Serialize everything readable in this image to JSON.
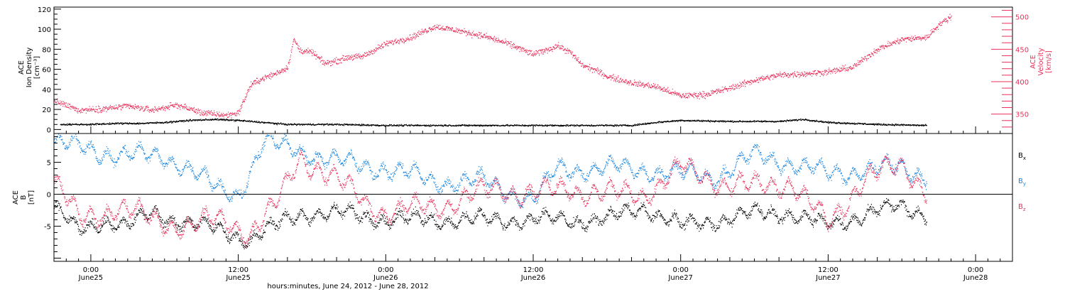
{
  "xlabel": "hours:minutes, June 24, 2012 - June 28, 2012",
  "x_ticks": [
    {
      "time": "2012-06-25T00:00",
      "hm": "0:00",
      "day": "June25"
    },
    {
      "time": "2012-06-25T12:00",
      "hm": "12:00",
      "day": "June25"
    },
    {
      "time": "2012-06-26T00:00",
      "hm": "0:00",
      "day": "June26"
    },
    {
      "time": "2012-06-26T12:00",
      "hm": "12:00",
      "day": "June26"
    },
    {
      "time": "2012-06-27T00:00",
      "hm": "0:00",
      "day": "June27"
    },
    {
      "time": "2012-06-27T12:00",
      "hm": "12:00",
      "day": "June27"
    },
    {
      "time": "2012-06-28T00:00",
      "hm": "0:00",
      "day": "June28"
    }
  ],
  "colors": {
    "density": "#000000",
    "velocity": "#e8305a",
    "bx": "#000000",
    "by": "#1a86e0",
    "bz": "#e8305a"
  },
  "chart_data": [
    {
      "type": "scatter",
      "panel": "top",
      "xlim": [
        "2012-06-24T21:00",
        "2012-06-28T03:00"
      ],
      "left_axis": {
        "label_lines": [
          "ACE",
          "Ion Density",
          "[cm⁻³]"
        ],
        "ylim": [
          -4,
          122
        ],
        "ticks": [
          0,
          20,
          40,
          60,
          80,
          100,
          120
        ]
      },
      "right_axis": {
        "label_lines": [
          "ACE",
          "Velocity",
          "[km/s]"
        ],
        "ylim": [
          320,
          515
        ],
        "ticks": [
          350,
          400,
          450,
          500
        ]
      },
      "series": [
        {
          "key": "density",
          "axis": "left",
          "color": "#000000",
          "points": [
            [
              "2012-06-24T21:30",
              5
            ],
            [
              "2012-06-25T00:00",
              5
            ],
            [
              "2012-06-25T02:00",
              6
            ],
            [
              "2012-06-25T04:00",
              6
            ],
            [
              "2012-06-25T06:00",
              7
            ],
            [
              "2012-06-25T08:00",
              9
            ],
            [
              "2012-06-25T10:00",
              10
            ],
            [
              "2012-06-25T12:00",
              9
            ],
            [
              "2012-06-25T14:00",
              7
            ],
            [
              "2012-06-25T16:00",
              5
            ],
            [
              "2012-06-25T18:00",
              5
            ],
            [
              "2012-06-25T20:00",
              5
            ],
            [
              "2012-06-26T00:00",
              4
            ],
            [
              "2012-06-26T04:00",
              4
            ],
            [
              "2012-06-26T08:00",
              4
            ],
            [
              "2012-06-26T12:00",
              4
            ],
            [
              "2012-06-26T16:00",
              4
            ],
            [
              "2012-06-26T20:00",
              4
            ],
            [
              "2012-06-26T22:00",
              7
            ],
            [
              "2012-06-27T00:00",
              9
            ],
            [
              "2012-06-27T04:00",
              8
            ],
            [
              "2012-06-27T08:00",
              8
            ],
            [
              "2012-06-27T10:00",
              10
            ],
            [
              "2012-06-27T12:00",
              7
            ],
            [
              "2012-06-27T16:00",
              5
            ],
            [
              "2012-06-27T20:00",
              4
            ]
          ]
        },
        {
          "key": "velocity",
          "axis": "right",
          "color": "#e8305a",
          "points": [
            [
              "2012-06-24T21:00",
              370
            ],
            [
              "2012-06-24T23:00",
              356
            ],
            [
              "2012-06-25T01:00",
              358
            ],
            [
              "2012-06-25T03:00",
              362
            ],
            [
              "2012-06-25T05:00",
              356
            ],
            [
              "2012-06-25T07:00",
              364
            ],
            [
              "2012-06-25T09:00",
              352
            ],
            [
              "2012-06-25T11:00",
              348
            ],
            [
              "2012-06-25T12:00",
              352
            ],
            [
              "2012-06-25T13:00",
              395
            ],
            [
              "2012-06-25T14:00",
              405
            ],
            [
              "2012-06-25T15:00",
              412
            ],
            [
              "2012-06-25T16:00",
              422
            ],
            [
              "2012-06-25T16:30",
              465
            ],
            [
              "2012-06-25T17:00",
              448
            ],
            [
              "2012-06-25T18:00",
              445
            ],
            [
              "2012-06-25T19:00",
              428
            ],
            [
              "2012-06-25T20:00",
              432
            ],
            [
              "2012-06-25T21:00",
              438
            ],
            [
              "2012-06-25T22:00",
              438
            ],
            [
              "2012-06-26T00:00",
              458
            ],
            [
              "2012-06-26T02:00",
              468
            ],
            [
              "2012-06-26T04:00",
              485
            ],
            [
              "2012-06-26T06:00",
              478
            ],
            [
              "2012-06-26T08:00",
              470
            ],
            [
              "2012-06-26T10:00",
              458
            ],
            [
              "2012-06-26T12:00",
              442
            ],
            [
              "2012-06-26T14:00",
              455
            ],
            [
              "2012-06-26T15:00",
              445
            ],
            [
              "2012-06-26T16:00",
              425
            ],
            [
              "2012-06-26T17:00",
              418
            ],
            [
              "2012-06-26T18:00",
              408
            ],
            [
              "2012-06-26T20:00",
              398
            ],
            [
              "2012-06-26T22:00",
              392
            ],
            [
              "2012-06-27T00:00",
              378
            ],
            [
              "2012-06-27T02:00",
              380
            ],
            [
              "2012-06-27T04:00",
              390
            ],
            [
              "2012-06-27T06:00",
              402
            ],
            [
              "2012-06-27T08:00",
              410
            ],
            [
              "2012-06-27T10:00",
              412
            ],
            [
              "2012-06-27T12:00",
              415
            ],
            [
              "2012-06-27T14:00",
              422
            ],
            [
              "2012-06-27T16:00",
              450
            ],
            [
              "2012-06-27T18:00",
              465
            ],
            [
              "2012-06-27T20:00",
              468
            ],
            [
              "2012-06-27T21:00",
              488
            ],
            [
              "2012-06-27T22:00",
              500
            ]
          ]
        }
      ]
    },
    {
      "type": "scatter",
      "panel": "bottom",
      "xlim": [
        "2012-06-24T21:00",
        "2012-06-28T03:00"
      ],
      "left_axis": {
        "label_lines": [
          "ACE",
          "B",
          "[nT]"
        ],
        "ylim": [
          -10.5,
          9.5
        ],
        "ticks": [
          -5,
          0,
          5
        ]
      },
      "legend_position": "right",
      "series": [
        {
          "key": "bx",
          "label": "B",
          "sub": "x",
          "color": "#000000",
          "points": [
            [
              "2012-06-24T21:00",
              -2
            ],
            [
              "2012-06-24T23:00",
              -6
            ],
            [
              "2012-06-25T01:00",
              -4
            ],
            [
              "2012-06-25T03:00",
              -5
            ],
            [
              "2012-06-25T05:00",
              -3
            ],
            [
              "2012-06-25T07:00",
              -4
            ],
            [
              "2012-06-25T09:00",
              -5
            ],
            [
              "2012-06-25T11:00",
              -6
            ],
            [
              "2012-06-25T13:00",
              -7
            ],
            [
              "2012-06-25T15:00",
              -5
            ],
            [
              "2012-06-25T17:00",
              -3
            ],
            [
              "2012-06-25T19:00",
              -3
            ],
            [
              "2012-06-25T21:00",
              -3
            ],
            [
              "2012-06-26T00:00",
              -4
            ],
            [
              "2012-06-26T03:00",
              -4
            ],
            [
              "2012-06-26T06:00",
              -4
            ],
            [
              "2012-06-26T09:00",
              -4
            ],
            [
              "2012-06-26T12:00",
              -4
            ],
            [
              "2012-06-26T15:00",
              -4
            ],
            [
              "2012-06-26T18:00",
              -4
            ],
            [
              "2012-06-26T21:00",
              -2
            ],
            [
              "2012-06-27T00:00",
              -5
            ],
            [
              "2012-06-27T03:00",
              -4
            ],
            [
              "2012-06-27T06:00",
              -3
            ],
            [
              "2012-06-27T09:00",
              -3
            ],
            [
              "2012-06-27T12:00",
              -5
            ],
            [
              "2012-06-27T15:00",
              -3
            ],
            [
              "2012-06-27T18:00",
              -2
            ],
            [
              "2012-06-27T20:00",
              -3
            ]
          ]
        },
        {
          "key": "by",
          "label": "B",
          "sub": "y",
          "color": "#1a86e0",
          "points": [
            [
              "2012-06-24T21:00",
              8
            ],
            [
              "2012-06-25T00:00",
              7
            ],
            [
              "2012-06-25T03:00",
              6
            ],
            [
              "2012-06-25T06:00",
              6
            ],
            [
              "2012-06-25T08:00",
              4
            ],
            [
              "2012-06-25T10:00",
              1
            ],
            [
              "2012-06-25T12:00",
              0
            ],
            [
              "2012-06-25T14:00",
              8
            ],
            [
              "2012-06-25T17:00",
              7
            ],
            [
              "2012-06-25T20:00",
              5
            ],
            [
              "2012-06-26T00:00",
              4
            ],
            [
              "2012-06-26T04:00",
              2
            ],
            [
              "2012-06-26T08:00",
              2
            ],
            [
              "2012-06-26T12:00",
              -1
            ],
            [
              "2012-06-26T14:00",
              4
            ],
            [
              "2012-06-26T18:00",
              4
            ],
            [
              "2012-06-26T21:00",
              4
            ],
            [
              "2012-06-27T00:00",
              3
            ],
            [
              "2012-06-27T03:00",
              3
            ],
            [
              "2012-06-27T06:00",
              6
            ],
            [
              "2012-06-27T09:00",
              5
            ],
            [
              "2012-06-27T12:00",
              3
            ],
            [
              "2012-06-27T15:00",
              4
            ],
            [
              "2012-06-27T18:00",
              4
            ],
            [
              "2012-06-27T20:00",
              3
            ]
          ]
        },
        {
          "key": "bz",
          "label": "B",
          "sub": "z",
          "color": "#e8305a",
          "points": [
            [
              "2012-06-24T21:00",
              2
            ],
            [
              "2012-06-24T23:00",
              -4
            ],
            [
              "2012-06-25T02:00",
              -2
            ],
            [
              "2012-06-25T05:00",
              -4
            ],
            [
              "2012-06-25T08:00",
              -5
            ],
            [
              "2012-06-25T11:00",
              -4
            ],
            [
              "2012-06-25T13:00",
              -6
            ],
            [
              "2012-06-25T15:00",
              -2
            ],
            [
              "2012-06-25T17:00",
              6
            ],
            [
              "2012-06-25T20:00",
              2
            ],
            [
              "2012-06-26T00:00",
              -3
            ],
            [
              "2012-06-26T03:00",
              -2
            ],
            [
              "2012-06-26T06:00",
              -1
            ],
            [
              "2012-06-26T09:00",
              1
            ],
            [
              "2012-06-26T12:00",
              0
            ],
            [
              "2012-06-26T15:00",
              1
            ],
            [
              "2012-06-26T18:00",
              0
            ],
            [
              "2012-06-26T21:00",
              0
            ],
            [
              "2012-06-27T00:00",
              4
            ],
            [
              "2012-06-27T03:00",
              2
            ],
            [
              "2012-06-27T06:00",
              1
            ],
            [
              "2012-06-27T09:00",
              2
            ],
            [
              "2012-06-27T12:00",
              -5
            ],
            [
              "2012-06-27T15:00",
              3
            ],
            [
              "2012-06-27T18:00",
              4
            ],
            [
              "2012-06-27T20:00",
              1
            ]
          ]
        }
      ]
    }
  ]
}
